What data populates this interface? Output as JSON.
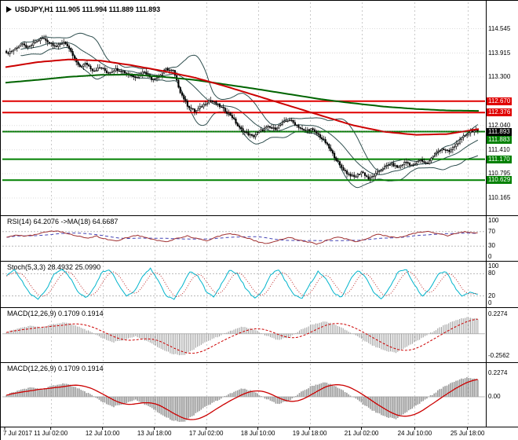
{
  "window": {
    "title_text": "USDJPY,H1 111.905 111.994 111.889 111.893"
  },
  "colors": {
    "background": "#ffffff",
    "frame": "#000000",
    "grid": "#c9c9c9",
    "bull_candle": "#ffffff",
    "bear_candle": "#000000",
    "candle_outline": "#000000",
    "bollinger": "#2f4f4f",
    "ma_fast": "#cc0000",
    "ma_slow": "#006400",
    "resistance": "#e00000",
    "support": "#008000",
    "current_price": "#000000",
    "rsi_line": "#a03030",
    "rsi_ma_line": "#4545b5",
    "stoch_main": "#00b4cc",
    "stoch_signal": "#c03030",
    "macd_hist": "#9a9a9a",
    "macd_signal": "#cc0000"
  },
  "chart_data": {
    "type": "candlestick",
    "title": "USDJPY,H1",
    "current_bar_ohlc": {
      "open": 111.905,
      "high": 111.994,
      "low": 111.889,
      "close": 111.893
    },
    "price_axis": {
      "visible_min": 109.82,
      "visible_max": 114.78,
      "plain_labels": [
        {
          "text": "114.545",
          "value": 114.545
        },
        {
          "text": "113.915",
          "value": 113.915
        },
        {
          "text": "113.300",
          "value": 113.3
        },
        {
          "text": "112.040",
          "value": 112.04
        },
        {
          "text": "111.410",
          "value": 111.41
        },
        {
          "text": "110.795",
          "value": 110.795
        },
        {
          "text": "110.165",
          "value": 110.165
        }
      ],
      "level_lines": [
        {
          "text": "112.670",
          "value": 112.67,
          "kind": "resistance"
        },
        {
          "text": "112.376",
          "value": 112.376,
          "kind": "resistance"
        },
        {
          "text": "111.883",
          "value": 111.883,
          "kind": "support",
          "label_dy": 10
        },
        {
          "text": "111.170",
          "value": 111.17,
          "kind": "support"
        },
        {
          "text": "110.629",
          "value": 110.629,
          "kind": "support"
        }
      ],
      "current_price": {
        "text": "111.893",
        "value": 111.893,
        "label_dy": 1
      }
    },
    "x_axis": {
      "ticks": [
        {
          "label": "7 Jul 2017",
          "f": 0
        },
        {
          "label": "11 Jul 02:00",
          "f": 0.096
        },
        {
          "label": "12 Jul 10:00",
          "f": 0.204
        },
        {
          "label": "13 Jul 18:00",
          "f": 0.312
        },
        {
          "label": "17 Jul 02:00",
          "f": 0.42
        },
        {
          "label": "18 Jul 10:00",
          "f": 0.528
        },
        {
          "label": "19 Jul 18:00",
          "f": 0.636
        },
        {
          "label": "21 Jul 02:00",
          "f": 0.744
        },
        {
          "label": "24 Jul 10:00",
          "f": 0.855
        },
        {
          "label": "25 Jul 18:00",
          "f": 0.965
        }
      ]
    },
    "price_path_closes": [
      113.9,
      114.0,
      114.15,
      114.05,
      114.2,
      114.3,
      114.18,
      114.08,
      114.22,
      113.9,
      113.55,
      113.65,
      113.45,
      113.55,
      113.4,
      113.5,
      113.45,
      113.35,
      113.3,
      113.45,
      113.25,
      113.3,
      113.5,
      113.45,
      112.9,
      112.55,
      112.4,
      112.55,
      112.7,
      112.6,
      112.45,
      112.3,
      112.0,
      111.85,
      111.75,
      111.9,
      112.0,
      111.95,
      112.1,
      112.2,
      112.05,
      111.9,
      111.95,
      111.8,
      111.6,
      111.3,
      111.0,
      110.8,
      110.7,
      110.85,
      110.65,
      110.8,
      110.95,
      111.05,
      110.95,
      111.1,
      111.0,
      111.15,
      111.05,
      111.3,
      111.45,
      111.35,
      111.55,
      111.75,
      111.9,
      111.89
    ],
    "overlays": {
      "bollinger": {
        "period": 20,
        "deviation": 2
      },
      "ma_fast_path": [
        113.55,
        113.68,
        113.75,
        113.72,
        113.6,
        113.45,
        113.28,
        113.05,
        112.8,
        112.55,
        112.3,
        112.05,
        111.88,
        111.8,
        111.82,
        111.95
      ],
      "ma_slow_path": [
        113.15,
        113.22,
        113.3,
        113.35,
        113.36,
        113.3,
        113.22,
        113.1,
        112.98,
        112.85,
        112.72,
        112.62,
        112.53,
        112.47,
        112.43,
        112.42
      ]
    },
    "panels": [
      {
        "id": "rsi",
        "header": "RSI(14) 64.2076 ->MA(18) 64.6687",
        "range": [
          -4,
          104
        ],
        "labels": [
          {
            "text": "100",
            "value": 100
          },
          {
            "text": "70",
            "value": 70
          },
          {
            "text": "30",
            "value": 30
          },
          {
            "text": "0",
            "value": 0
          }
        ],
        "levels": [
          70,
          30
        ],
        "values": [
          55,
          60,
          57,
          63,
          69,
          72,
          66,
          58,
          52,
          57,
          48,
          44,
          54,
          60,
          52,
          46,
          42,
          52,
          58,
          50,
          45,
          56,
          64,
          60,
          52,
          43,
          37,
          45,
          54,
          49,
          42,
          36,
          46,
          56,
          49,
          42,
          52,
          62,
          57,
          52,
          60,
          68,
          71,
          64,
          59,
          66,
          70,
          65
        ]
      },
      {
        "id": "stoch",
        "header": "Stoch(5,3,3) 28.4932 25.0990",
        "range": [
          -4,
          104
        ],
        "labels": [
          {
            "text": "100",
            "value": 100
          },
          {
            "text": "80",
            "value": 80
          },
          {
            "text": "20",
            "value": 20
          },
          {
            "text": "0",
            "value": 0
          }
        ],
        "levels": [
          80,
          20
        ],
        "values": [
          75,
          92,
          58,
          24,
          12,
          38,
          80,
          94,
          68,
          30,
          14,
          44,
          86,
          90,
          52,
          18,
          32,
          72,
          95,
          62,
          20,
          10,
          48,
          88,
          74,
          32,
          16,
          56,
          91,
          78,
          38,
          14,
          30,
          76,
          93,
          58,
          22,
          12,
          52,
          86,
          66,
          26,
          16,
          62,
          90,
          70,
          28,
          12,
          44,
          84,
          93,
          52,
          20,
          38,
          78,
          88,
          48,
          18,
          30,
          26
        ]
      },
      {
        "id": "macd1",
        "header": "MACD(12,26,9) 0.1709 0.1914",
        "range": [
          -0.3,
          0.26
        ],
        "labels": [
          {
            "text": "0.2274",
            "value": 0.2274
          },
          {
            "text": "-0.2562",
            "value": -0.2562
          }
        ],
        "levels": [
          0
        ],
        "values": [
          0.02,
          0.06,
          0.09,
          0.07,
          0.11,
          0.13,
          0.09,
          0.03,
          -0.04,
          -0.1,
          -0.07,
          -0.03,
          -0.09,
          -0.16,
          -0.23,
          -0.25,
          -0.17,
          -0.09,
          -0.03,
          0.03,
          0.08,
          0.05,
          -0.02,
          -0.07,
          -0.04,
          0.05,
          0.11,
          0.14,
          0.1,
          0.03,
          -0.05,
          -0.13,
          -0.19,
          -0.22,
          -0.15,
          -0.07,
          0.01,
          0.09,
          0.15,
          0.19,
          0.17
        ]
      },
      {
        "id": "macd2",
        "header": "MACD(12,26,9) 0.1709 0.1914",
        "range": [
          -0.27,
          0.3
        ],
        "labels": [
          {
            "text": "0.2274",
            "value": 0.2274
          },
          {
            "text": "0.00",
            "value": 0
          }
        ],
        "levels": [
          0
        ],
        "values_from": "macd1"
      }
    ]
  }
}
